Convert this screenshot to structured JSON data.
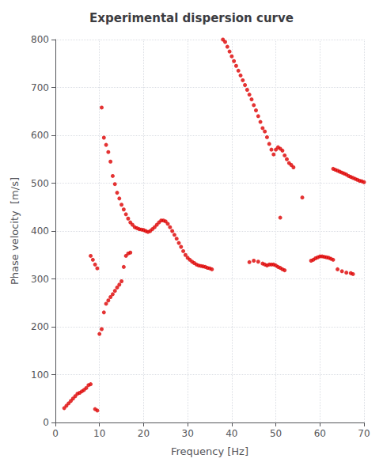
{
  "chart_data": {
    "type": "scatter",
    "title": "Experimental dispersion curve",
    "xlabel": "Frequency [Hz]",
    "ylabel": "Phase velocity  [m/s]",
    "color": "#dd0000",
    "grid": true,
    "xlim": [
      0,
      70
    ],
    "ylim": [
      0,
      800
    ],
    "xticks": [
      0,
      10,
      20,
      30,
      40,
      50,
      60,
      70
    ],
    "yticks": [
      0,
      100,
      200,
      300,
      400,
      500,
      600,
      700,
      800
    ],
    "x": [
      2.0,
      2.5,
      3.0,
      3.5,
      4.0,
      4.5,
      5.0,
      5.5,
      6.0,
      6.5,
      7.0,
      7.5,
      8.0,
      9.0,
      9.5,
      8.0,
      8.5,
      9.0,
      9.5,
      10.0,
      10.5,
      11.0,
      11.5,
      12.0,
      12.5,
      13.0,
      13.5,
      14.0,
      14.5,
      15.0,
      15.5,
      16.0,
      16.5,
      17.0,
      10.5,
      11.0,
      11.5,
      12.0,
      12.5,
      13.0,
      13.5,
      14.0,
      14.5,
      15.0,
      15.5,
      16.0,
      16.5,
      17.0,
      17.5,
      18.0,
      18.5,
      19.0,
      19.5,
      20.0,
      20.5,
      21.0,
      21.5,
      22.0,
      22.5,
      23.0,
      23.5,
      24.0,
      24.5,
      25.0,
      25.5,
      26.0,
      26.5,
      27.0,
      27.5,
      28.0,
      28.5,
      29.0,
      29.5,
      30.0,
      30.5,
      31.0,
      31.5,
      32.0,
      32.5,
      33.0,
      33.5,
      34.0,
      34.5,
      35.0,
      35.5,
      38.0,
      38.5,
      39.0,
      39.5,
      40.0,
      40.5,
      41.0,
      41.5,
      42.0,
      42.5,
      43.0,
      43.5,
      44.0,
      44.5,
      45.0,
      45.5,
      46.0,
      46.5,
      47.0,
      44.0,
      45.0,
      46.0,
      47.0,
      47.5,
      48.0,
      48.5,
      49.0,
      49.5,
      50.0,
      50.5,
      51.0,
      51.5,
      52.0,
      47.5,
      48.0,
      48.5,
      49.0,
      49.5,
      50.0,
      50.5,
      51.0,
      51.5,
      52.0,
      52.5,
      53.0,
      53.5,
      54.0,
      51.0,
      56.0,
      58.0,
      58.5,
      59.0,
      59.5,
      60.0,
      60.5,
      61.0,
      61.5,
      62.0,
      62.5,
      63.0,
      63.0,
      63.5,
      64.0,
      64.5,
      65.0,
      65.5,
      66.0,
      66.5,
      67.0,
      67.5,
      68.0,
      68.5,
      69.0,
      69.5,
      70.0,
      64.0,
      65.0,
      66.0,
      67.0,
      67.5
    ],
    "values": [
      30,
      35,
      40,
      45,
      50,
      55,
      60,
      62,
      65,
      68,
      72,
      78,
      80,
      28,
      25,
      348,
      340,
      330,
      322,
      185,
      195,
      230,
      248,
      255,
      262,
      268,
      275,
      282,
      288,
      295,
      325,
      348,
      353,
      355,
      658,
      595,
      580,
      565,
      545,
      515,
      498,
      480,
      468,
      455,
      445,
      435,
      426,
      418,
      413,
      408,
      406,
      404,
      403,
      402,
      400,
      398,
      400,
      404,
      408,
      413,
      418,
      422,
      422,
      420,
      415,
      408,
      400,
      392,
      384,
      375,
      367,
      358,
      350,
      344,
      340,
      336,
      333,
      330,
      328,
      327,
      326,
      325,
      323,
      322,
      320,
      800,
      795,
      785,
      775,
      765,
      755,
      745,
      735,
      725,
      715,
      705,
      695,
      685,
      675,
      663,
      652,
      640,
      628,
      615,
      335,
      338,
      336,
      332,
      330,
      328,
      330,
      330,
      330,
      328,
      325,
      323,
      320,
      318,
      608,
      596,
      582,
      570,
      560,
      570,
      575,
      572,
      568,
      558,
      550,
      542,
      538,
      533,
      428,
      470,
      338,
      340,
      343,
      345,
      347,
      347,
      346,
      345,
      344,
      342,
      340,
      530,
      528,
      526,
      524,
      522,
      520,
      518,
      515,
      513,
      511,
      509,
      507,
      505,
      504,
      502,
      320,
      316,
      313,
      312,
      310
    ]
  }
}
